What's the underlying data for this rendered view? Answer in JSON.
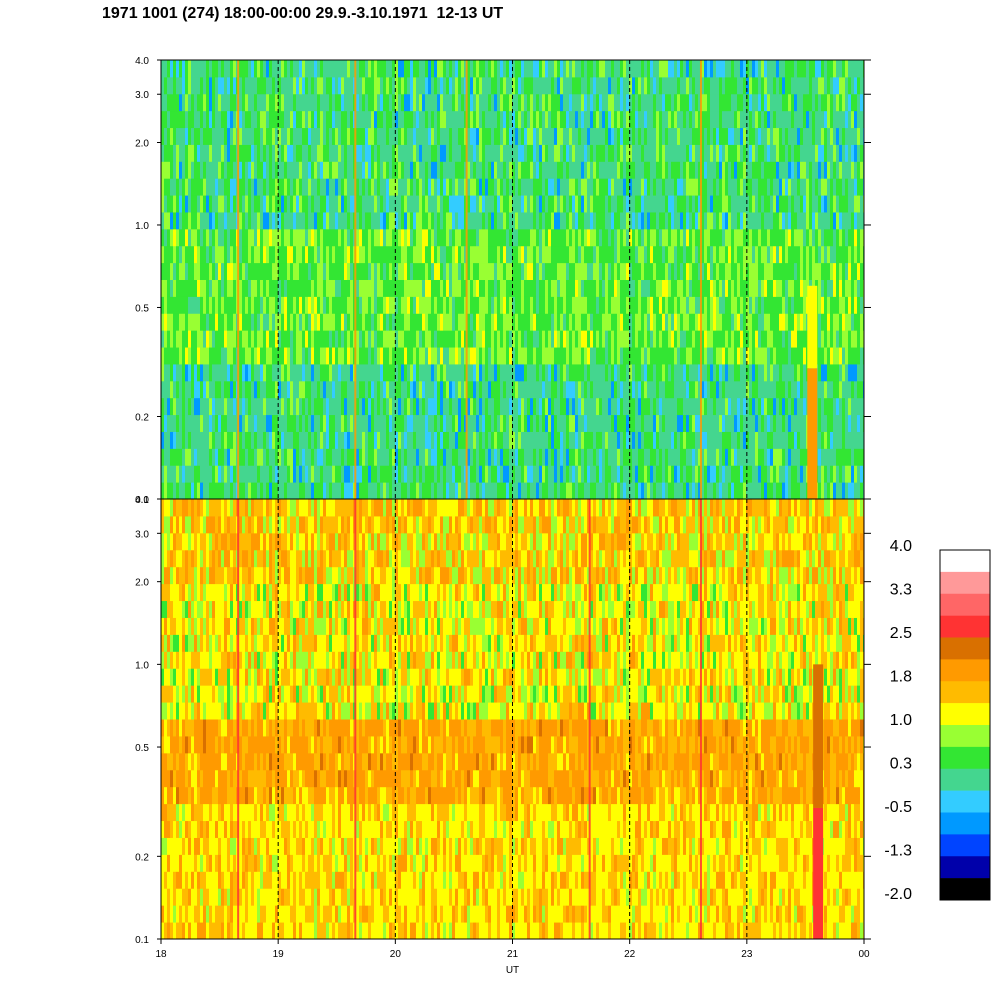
{
  "header": {
    "title": "1971 1001 (274) 18:00-00:00 29.9.-3.10.1971  12-13 UT"
  },
  "chart_data": [
    {
      "type": "heatmap",
      "panel": "top",
      "xlabel": "",
      "ylabel": "",
      "y_scale": "log",
      "ylim": [
        0.1,
        4.0
      ],
      "xlim": [
        "18",
        "00"
      ],
      "y_ticks": [
        0.1,
        0.2,
        0.5,
        1.0,
        2.0,
        3.0,
        4.0
      ],
      "y_tick_labels": [
        "0.1",
        "0.2",
        "0.5",
        "1.0",
        "2.0",
        "3.0",
        "4.0"
      ],
      "dominant_levels": {
        "0.1-0.3": "0.3 to -0.5 (green/teal)",
        "0.3-1.0": "0.3 to 1.0 (green/yellow-green)",
        "1.0-4.0": "-0.5 to 0.3 (teal/green)"
      },
      "features": [
        {
          "x": "18.65",
          "note": "thin orange vertical streak"
        },
        {
          "x": "19.65",
          "note": "thin orange vertical streak"
        },
        {
          "x": "20.6",
          "note": "thin orange vertical streak"
        },
        {
          "x": "22.6",
          "note": "thin orange vertical streak"
        },
        {
          "x": "23.55",
          "note": "orange band at 0.1-0.3, yellow to 0.6"
        }
      ]
    },
    {
      "type": "heatmap",
      "panel": "bottom",
      "xlabel": "UT",
      "ylabel": "",
      "y_scale": "log",
      "ylim": [
        0.1,
        4.0
      ],
      "xlim": [
        "18",
        "00"
      ],
      "x_ticks": [
        "18",
        "19",
        "20",
        "21",
        "22",
        "23",
        "00"
      ],
      "y_ticks": [
        0.1,
        0.2,
        0.5,
        1.0,
        2.0,
        3.0,
        4.0
      ],
      "y_tick_labels": [
        "0.1",
        "0.2",
        "0.5",
        "1.0",
        "2.0",
        "3.0",
        "4.0"
      ],
      "dominant_levels": {
        "0.1-0.3": "1.0 to 1.8 (yellow/orange)",
        "0.3-0.6": "1.8 to 2.2 (orange)",
        "0.6-2.0": "1.0 to 1.8 (yellow/green)",
        "2.0-4.0": "1.0 to 1.8 (orange/yellow)"
      },
      "features": [
        {
          "x": "18.65",
          "note": "thin red vertical streak"
        },
        {
          "x": "19.65",
          "note": "thin red vertical streak"
        },
        {
          "x": "21.65",
          "note": "thin red vertical streak"
        },
        {
          "x": "22.6",
          "note": "thin red vertical streak"
        },
        {
          "x": "23.6",
          "note": "red band at 0.1-0.3, dark orange to 1.0"
        }
      ]
    }
  ],
  "colorbar": {
    "labels": [
      "4.0",
      "3.3",
      "2.5",
      "1.8",
      "1.0",
      "0.3",
      "-0.5",
      "-1.3",
      "-2.0"
    ],
    "colors": [
      "#ffffff",
      "#ff9999",
      "#ff6666",
      "#ff3333",
      "#d97000",
      "#ff9a00",
      "#ffbb00",
      "#ffff00",
      "#99ff33",
      "#33e633",
      "#44d68f",
      "#33ccff",
      "#0099ff",
      "#0044ff",
      "#0000aa",
      "#000000"
    ]
  }
}
